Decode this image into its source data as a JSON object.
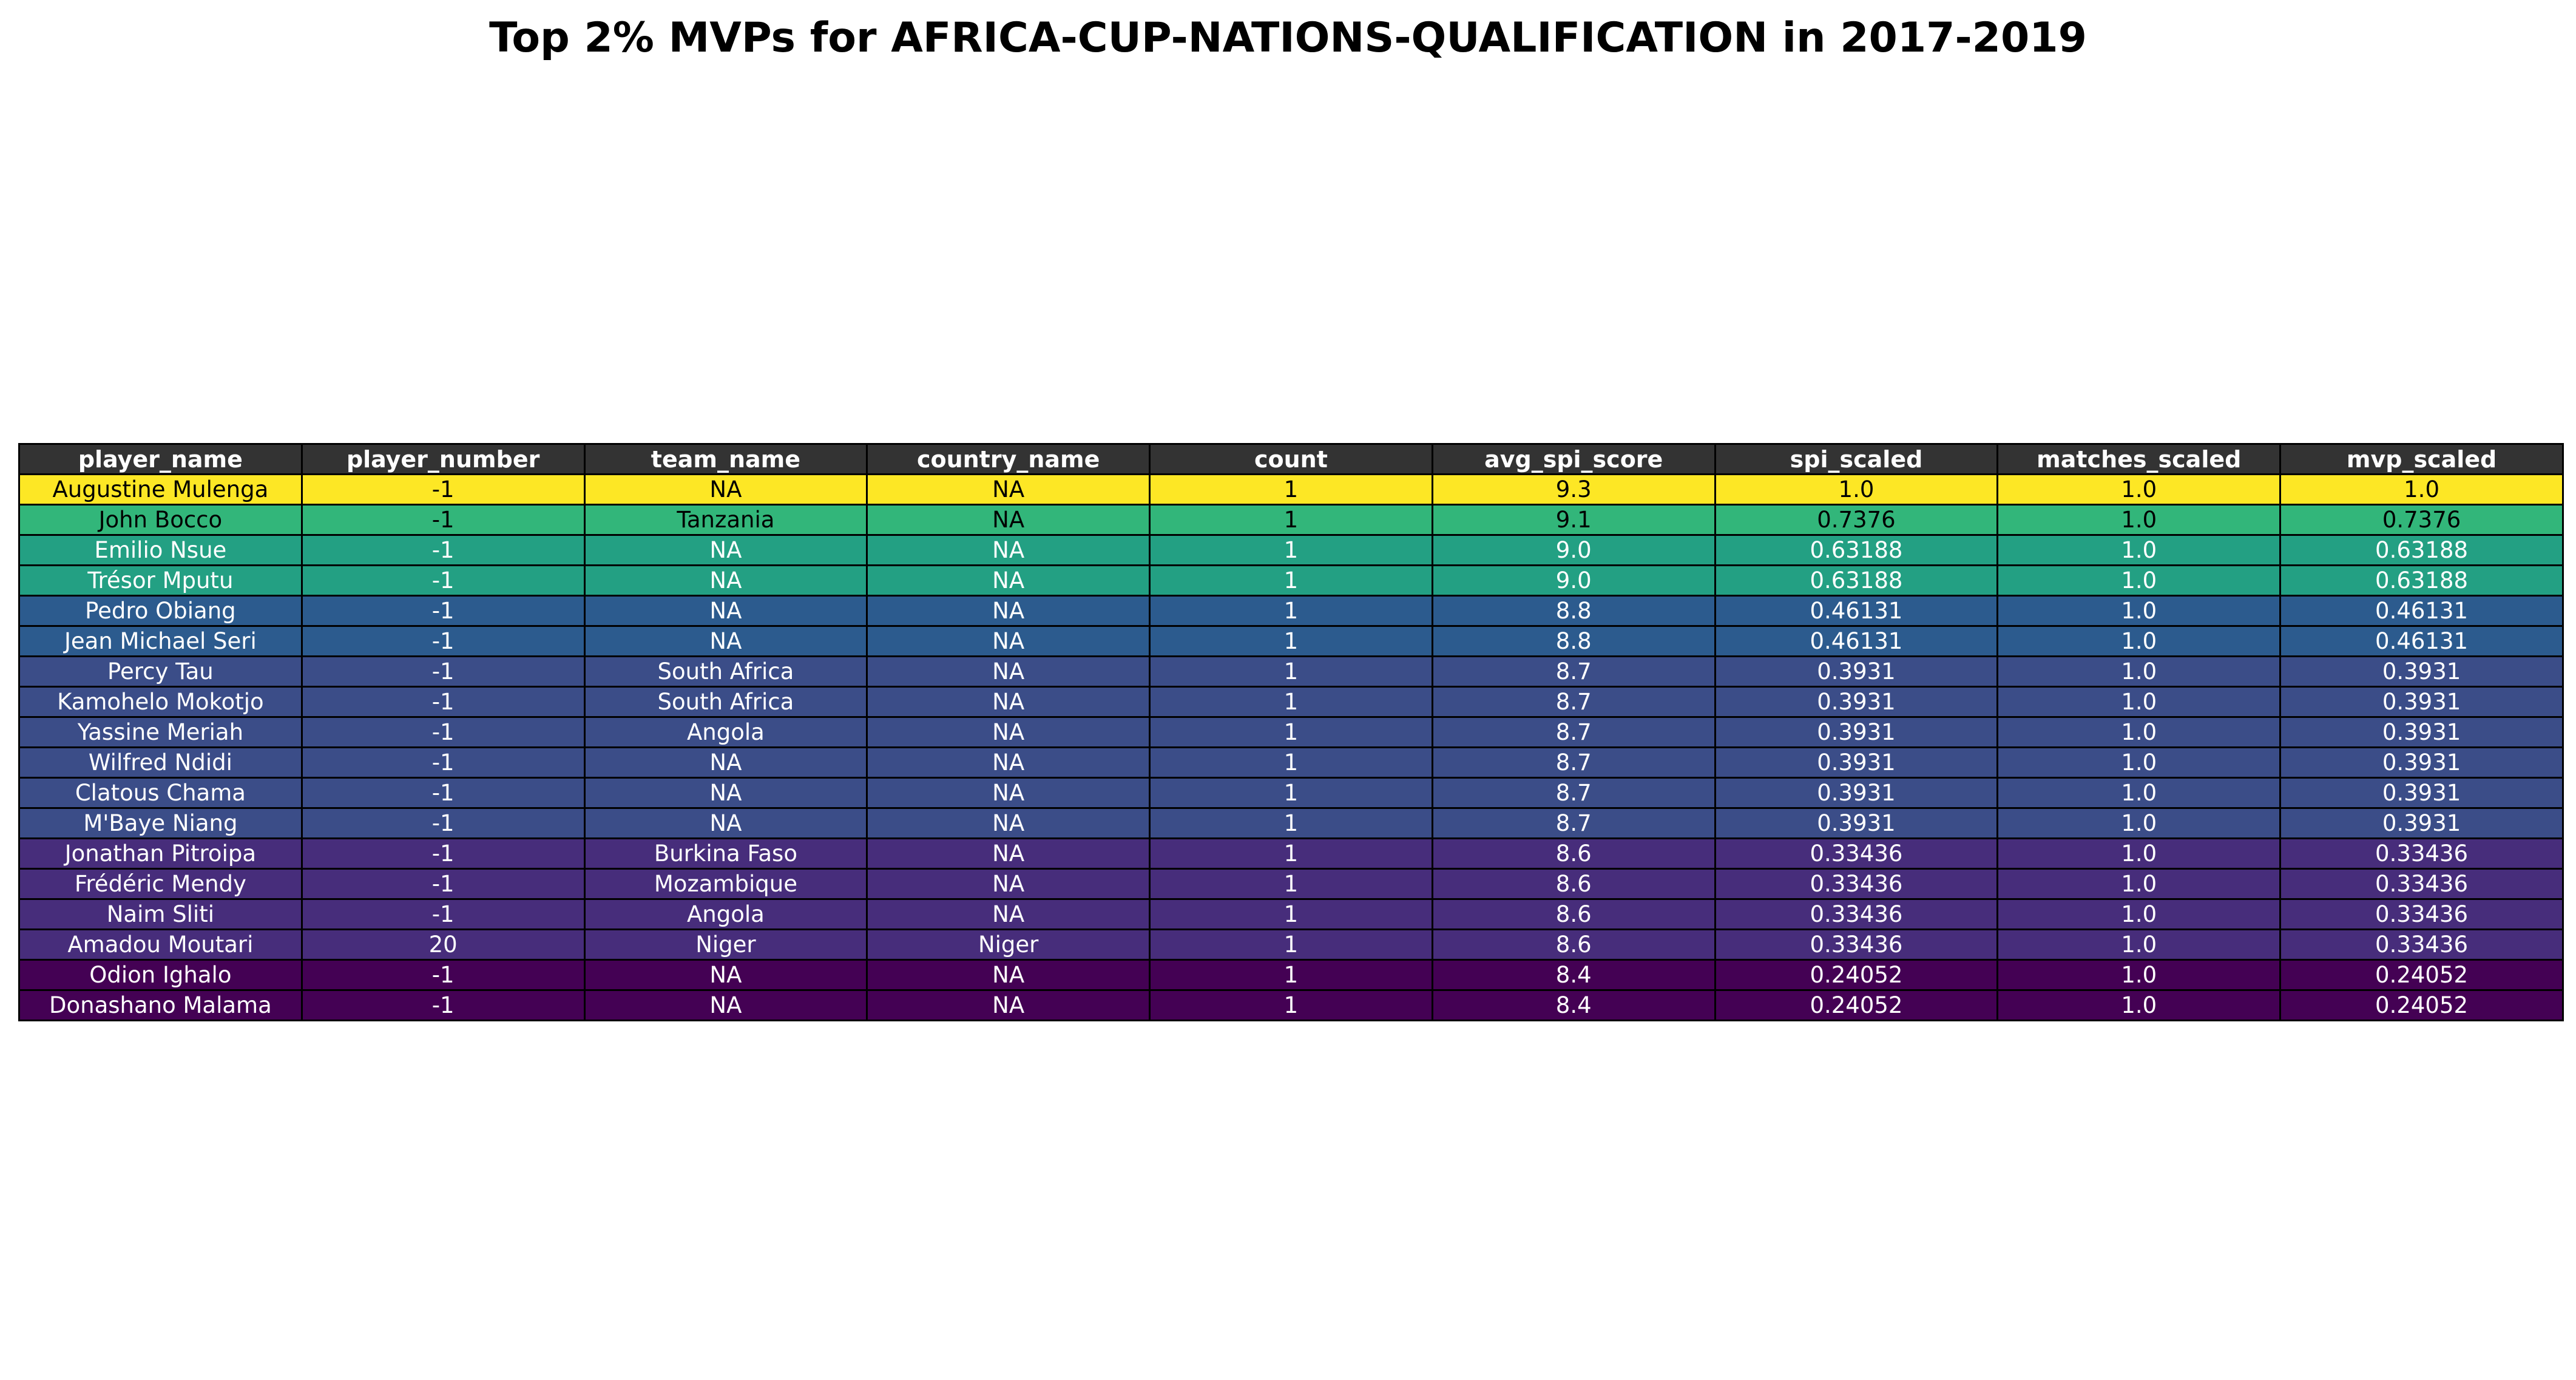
{
  "title": "Top 2% MVPs for AFRICA-CUP-NATIONS-QUALIFICATION in 2017-2019",
  "header_color": "#333333",
  "chart_data": {
    "type": "table",
    "title": "Top 2% MVPs for AFRICA-CUP-NATIONS-QUALIFICATION in 2017-2019",
    "colormap": "viridis",
    "color_by": "mvp_scaled",
    "columns": [
      "player_name",
      "player_number",
      "team_name",
      "country_name",
      "count",
      "avg_spi_score",
      "spi_scaled",
      "matches_scaled",
      "mvp_scaled"
    ],
    "rows": [
      {
        "cells": [
          "Augustine Mulenga",
          "-1",
          "NA",
          "NA",
          "1",
          "9.3",
          "1.0",
          "1.0",
          "1.0"
        ],
        "bg": "#fde725",
        "fg": "#000000"
      },
      {
        "cells": [
          "John Bocco",
          "-1",
          "Tanzania",
          "NA",
          "1",
          "9.1",
          "0.7376",
          "1.0",
          "0.7376"
        ],
        "bg": "#32b67a",
        "fg": "#000000"
      },
      {
        "cells": [
          "Emilio Nsue",
          "-1",
          "NA",
          "NA",
          "1",
          "9.0",
          "0.63188",
          "1.0",
          "0.63188"
        ],
        "bg": "#23a083",
        "fg": "#ffffff"
      },
      {
        "cells": [
          "Trésor Mputu",
          "-1",
          "NA",
          "NA",
          "1",
          "9.0",
          "0.63188",
          "1.0",
          "0.63188"
        ],
        "bg": "#23a083",
        "fg": "#ffffff"
      },
      {
        "cells": [
          "Pedro Obiang",
          "-1",
          "NA",
          "NA",
          "1",
          "8.8",
          "0.46131",
          "1.0",
          "0.46131"
        ],
        "bg": "#2c5b8e",
        "fg": "#ffffff"
      },
      {
        "cells": [
          "Jean Michael Seri",
          "-1",
          "NA",
          "NA",
          "1",
          "8.8",
          "0.46131",
          "1.0",
          "0.46131"
        ],
        "bg": "#2c5b8e",
        "fg": "#ffffff"
      },
      {
        "cells": [
          "Percy Tau",
          "-1",
          "South Africa",
          "NA",
          "1",
          "8.7",
          "0.3931",
          "1.0",
          "0.3931"
        ],
        "bg": "#3b4d88",
        "fg": "#ffffff"
      },
      {
        "cells": [
          "Kamohelo Mokotjo",
          "-1",
          "South Africa",
          "NA",
          "1",
          "8.7",
          "0.3931",
          "1.0",
          "0.3931"
        ],
        "bg": "#3b4d88",
        "fg": "#ffffff"
      },
      {
        "cells": [
          "Yassine Meriah",
          "-1",
          "Angola",
          "NA",
          "1",
          "8.7",
          "0.3931",
          "1.0",
          "0.3931"
        ],
        "bg": "#3b4d88",
        "fg": "#ffffff"
      },
      {
        "cells": [
          "Wilfred Ndidi",
          "-1",
          "NA",
          "NA",
          "1",
          "8.7",
          "0.3931",
          "1.0",
          "0.3931"
        ],
        "bg": "#3b4d88",
        "fg": "#ffffff"
      },
      {
        "cells": [
          "Clatous Chama",
          "-1",
          "NA",
          "NA",
          "1",
          "8.7",
          "0.3931",
          "1.0",
          "0.3931"
        ],
        "bg": "#3b4d88",
        "fg": "#ffffff"
      },
      {
        "cells": [
          "M'Baye Niang",
          "-1",
          "NA",
          "NA",
          "1",
          "8.7",
          "0.3931",
          "1.0",
          "0.3931"
        ],
        "bg": "#3b4d88",
        "fg": "#ffffff"
      },
      {
        "cells": [
          "Jonathan Pitroipa",
          "-1",
          "Burkina Faso",
          "NA",
          "1",
          "8.6",
          "0.33436",
          "1.0",
          "0.33436"
        ],
        "bg": "#472d7b",
        "fg": "#ffffff"
      },
      {
        "cells": [
          "Frédéric Mendy",
          "-1",
          "Mozambique",
          "NA",
          "1",
          "8.6",
          "0.33436",
          "1.0",
          "0.33436"
        ],
        "bg": "#472d7b",
        "fg": "#ffffff"
      },
      {
        "cells": [
          "Naim Sliti",
          "-1",
          "Angola",
          "NA",
          "1",
          "8.6",
          "0.33436",
          "1.0",
          "0.33436"
        ],
        "bg": "#472d7b",
        "fg": "#ffffff"
      },
      {
        "cells": [
          "Amadou Moutari",
          "20",
          "Niger",
          "Niger",
          "1",
          "8.6",
          "0.33436",
          "1.0",
          "0.33436"
        ],
        "bg": "#472d7b",
        "fg": "#ffffff"
      },
      {
        "cells": [
          "Odion Ighalo",
          "-1",
          "NA",
          "NA",
          "1",
          "8.4",
          "0.24052",
          "1.0",
          "0.24052"
        ],
        "bg": "#440154",
        "fg": "#ffffff"
      },
      {
        "cells": [
          "Donashano Malama",
          "-1",
          "NA",
          "NA",
          "1",
          "8.4",
          "0.24052",
          "1.0",
          "0.24052"
        ],
        "bg": "#440154",
        "fg": "#ffffff"
      }
    ]
  }
}
